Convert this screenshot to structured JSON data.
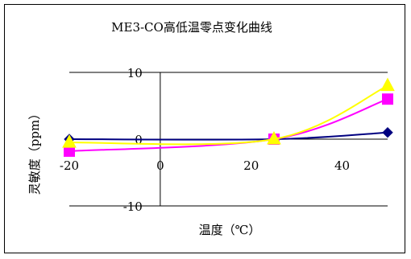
{
  "chart_data": {
    "type": "line",
    "title": "ME3-CO高低温零点变化曲线",
    "xlabel": "温度（℃）",
    "ylabel": "灵敏度（ppm）",
    "xlim": [
      -20,
      50
    ],
    "ylim": [
      -10,
      10
    ],
    "x_ticks": [
      "-20",
      "0",
      "20",
      "40"
    ],
    "y_ticks": [
      "10",
      "0",
      "-10"
    ],
    "grid": "horizontal major gridlines only",
    "legend": "none",
    "series": [
      {
        "x": [
          -20,
          25,
          50
        ],
        "y": [
          0,
          0,
          1
        ],
        "color": "#000080",
        "marker": "diamond"
      },
      {
        "x": [
          -20,
          25,
          50
        ],
        "y": [
          -1.8,
          0,
          6
        ],
        "color": "#ff00ff",
        "marker": "square"
      },
      {
        "x": [
          -20,
          25,
          50
        ],
        "y": [
          -0.5,
          0,
          8
        ],
        "color": "#ffff00",
        "marker": "triangle"
      }
    ]
  }
}
